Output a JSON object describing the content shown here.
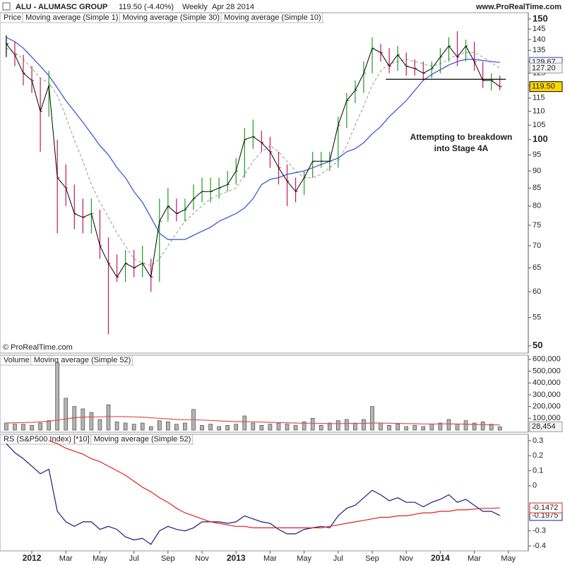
{
  "header": {
    "symbol": "ALU - ALUMASC GROUP",
    "quote": "119.50 (-4.40%)",
    "period": "Weekly",
    "date": "Apr 28 2014",
    "site": "www.ProRealTime.com"
  },
  "chart_data": [
    {
      "type": "ohlc",
      "legend_title": "Price",
      "price_line_name": "Moving average (Simple 1)",
      "log_scale": true,
      "x": [
        -1.5,
        -1,
        -0.5,
        0,
        0.5,
        1,
        1.5,
        2,
        2.5,
        3,
        3.5,
        4,
        4.5,
        5,
        5.5,
        6,
        6.5,
        7,
        7.5,
        8,
        8.5,
        9,
        9.5,
        10,
        10.5,
        11,
        11.5,
        12,
        12.5,
        13,
        13.5,
        14,
        14.5,
        15,
        15.5,
        16,
        16.5,
        17,
        17.5,
        18,
        18.5,
        19,
        19.5,
        20,
        20.5,
        21,
        21.5,
        22,
        22.5,
        23,
        23.5,
        24,
        24.5,
        25,
        25.5,
        26,
        26.5,
        27,
        27.5
      ],
      "high": [
        142,
        139,
        133,
        128,
        123,
        126,
        100,
        92,
        86,
        82,
        82,
        79,
        72,
        68,
        69,
        69,
        70,
        67,
        82,
        85,
        82,
        82,
        86,
        88,
        88,
        88,
        90,
        94,
        104,
        107,
        103,
        101,
        96,
        92,
        88,
        90,
        96,
        96,
        96,
        108,
        117,
        122,
        130,
        141,
        138,
        136,
        137,
        134,
        131,
        130,
        130,
        136,
        141,
        144,
        140,
        139,
        130,
        125,
        124
      ],
      "low": [
        132,
        128,
        120,
        117,
        96,
        108,
        73,
        80,
        74,
        73,
        73,
        67,
        52,
        62,
        62,
        63,
        63,
        60,
        62,
        76,
        76,
        76,
        79,
        81,
        81,
        82,
        84,
        86,
        88,
        97,
        96,
        91,
        86,
        80,
        81,
        83,
        88,
        91,
        90,
        91,
        104,
        113,
        117,
        125,
        130,
        125,
        126,
        124,
        124,
        122,
        123,
        125,
        130,
        128,
        130,
        126,
        119,
        118,
        118
      ],
      "close": [
        138,
        133,
        125,
        122,
        110,
        120,
        88,
        85,
        78,
        77,
        78,
        70,
        66,
        63,
        66,
        65,
        66,
        63,
        76,
        80,
        78,
        79,
        82,
        84,
        84,
        85,
        86,
        90,
        100,
        101,
        99,
        96,
        91,
        87,
        84,
        88,
        93,
        93,
        93,
        105,
        114,
        118,
        125,
        136,
        134,
        128,
        133,
        128,
        127,
        125,
        127,
        132,
        137,
        132,
        137,
        130,
        122,
        122,
        119.5
      ],
      "close_last_label": "119.50",
      "up_color": "#1e9b1e",
      "down_color": "#c2185b",
      "line_color": "#000000",
      "series": [
        {
          "name": "Moving average (Simple 30)",
          "color": "#2f4fd6",
          "values": [
            141,
            139,
            136,
            132,
            128,
            124,
            119,
            114,
            110,
            106,
            102,
            98,
            95,
            91,
            88,
            84,
            81,
            77,
            73,
            71.5,
            71.5,
            71.5,
            72.5,
            73.5,
            74.5,
            76,
            77,
            78,
            79.5,
            82,
            86,
            87.5,
            88,
            89,
            89.5,
            90,
            91,
            92,
            93,
            94,
            96,
            97,
            99,
            102,
            104.5,
            108,
            111,
            114,
            118,
            122,
            124.5,
            126.5,
            128.5,
            130,
            131,
            131,
            130.5,
            130,
            129.67
          ]
        },
        {
          "name": "Moving average (Simple 10)",
          "color": "#a8a8a8",
          "dashed": true,
          "last_label": "127.20",
          "values": [
            136,
            134,
            131,
            127,
            123,
            121,
            116,
            108,
            100,
            93,
            86,
            81,
            77,
            73,
            70,
            67,
            66,
            65.5,
            67,
            70,
            73,
            76,
            78,
            80,
            82,
            83,
            84,
            85,
            89,
            93,
            96,
            98,
            96,
            93,
            90,
            88,
            88,
            89,
            91,
            93,
            98,
            105,
            112,
            120,
            126,
            129,
            130,
            131,
            130,
            129,
            128,
            129,
            131,
            133,
            134,
            134,
            132,
            129.5,
            127.2
          ]
        }
      ],
      "support_line": {
        "value": 122.5,
        "x": [
          20.8,
          27.85
        ]
      },
      "annotation": [
        "Attempting to breakdown",
        "into Stage 4A"
      ],
      "copyright": "© ProRealTime.com",
      "xlim": [
        -1.87,
        29.17
      ],
      "ylim": [
        48.8,
        153.2
      ],
      "yticks": [
        50,
        55,
        60,
        65,
        70,
        75,
        80,
        85,
        90,
        95,
        100,
        105,
        110,
        115,
        120,
        125,
        130,
        135,
        140,
        145,
        150
      ]
    },
    {
      "type": "bar",
      "legend_title": "Volume",
      "color": "#b4b4b4",
      "x": [
        -1.5,
        -1,
        -0.5,
        0,
        0.5,
        1,
        1.5,
        2,
        2.5,
        3,
        3.5,
        4,
        4.5,
        5,
        5.5,
        6,
        6.5,
        7,
        7.5,
        8,
        8.5,
        9,
        9.5,
        10,
        10.5,
        11,
        11.5,
        12,
        12.5,
        13,
        13.5,
        14,
        14.5,
        15,
        15.5,
        16,
        16.5,
        17,
        17.5,
        18,
        18.5,
        19,
        19.5,
        20,
        20.5,
        21,
        21.5,
        22,
        22.5,
        23,
        23.5,
        24,
        24.5,
        25,
        25.5,
        26,
        26.5,
        27,
        27.5
      ],
      "values": [
        60000,
        50000,
        50000,
        40000,
        60000,
        80000,
        570000,
        270000,
        200000,
        180000,
        150000,
        90000,
        215000,
        70000,
        60000,
        50000,
        60000,
        30000,
        80000,
        70000,
        50000,
        60000,
        175000,
        40000,
        50000,
        30000,
        40000,
        50000,
        120000,
        60000,
        40000,
        50000,
        60000,
        50000,
        40000,
        70000,
        100000,
        40000,
        60000,
        80000,
        90000,
        60000,
        90000,
        200000,
        60000,
        40000,
        50000,
        30000,
        40000,
        30000,
        50000,
        60000,
        90000,
        50000,
        80000,
        60000,
        70000,
        50000,
        28454
      ],
      "last_label": "28,454",
      "series": [
        {
          "name": "Moving average (Simple 52)",
          "color": "#e05050",
          "values": [
            60000,
            62000,
            64000,
            66000,
            70000,
            75000,
            85000,
            95000,
            105000,
            110000,
            112000,
            112000,
            115000,
            115000,
            114000,
            112000,
            110000,
            105000,
            100000,
            95000,
            90000,
            88000,
            88000,
            85000,
            82000,
            78000,
            75000,
            72000,
            72000,
            70000,
            68000,
            66000,
            64000,
            62000,
            60000,
            58000,
            58000,
            56000,
            55000,
            55000,
            56000,
            56000,
            57000,
            60000,
            60000,
            58000,
            56000,
            55000,
            54000,
            52000,
            52000,
            52000,
            53000,
            52000,
            50000,
            48000,
            46000,
            45000,
            44000
          ]
        }
      ],
      "xlim": [
        -1.87,
        29.17
      ],
      "ylim": [
        -18000,
        634700
      ],
      "yticks": [
        {
          "value": 100000,
          "label": "100,000"
        },
        {
          "value": 200000,
          "label": "200,000"
        },
        {
          "value": 300000,
          "label": "300,000"
        },
        {
          "value": 400000,
          "label": "400,000"
        },
        {
          "value": 500000,
          "label": "500,000"
        },
        {
          "value": 600000,
          "label": "600,000"
        }
      ]
    },
    {
      "type": "line",
      "x": [
        -1.5,
        -1,
        -0.5,
        0,
        0.5,
        1,
        1.5,
        2,
        2.5,
        3,
        3.5,
        4,
        4.5,
        5,
        5.5,
        6,
        6.5,
        7,
        7.5,
        8,
        8.5,
        9,
        9.5,
        10,
        10.5,
        11,
        11.5,
        12,
        12.5,
        13,
        13.5,
        14,
        14.5,
        15,
        15.5,
        16,
        16.5,
        17,
        17.5,
        18,
        18.5,
        19,
        19.5,
        20,
        20.5,
        21,
        21.5,
        22,
        22.5,
        23,
        23.5,
        24,
        24.5,
        25,
        25.5,
        26,
        26.5,
        27,
        27.5
      ],
      "series": [
        {
          "name": "RS (S&P500 Index) [*10]",
          "color": "#1c1c80",
          "values": [
            0.28,
            0.22,
            0.18,
            0.13,
            0.08,
            0.11,
            -0.17,
            -0.24,
            -0.27,
            -0.24,
            -0.24,
            -0.29,
            -0.27,
            -0.29,
            -0.34,
            -0.36,
            -0.35,
            -0.39,
            -0.3,
            -0.27,
            -0.29,
            -0.3,
            -0.28,
            -0.24,
            -0.24,
            -0.24,
            -0.25,
            -0.24,
            -0.2,
            -0.22,
            -0.24,
            -0.25,
            -0.29,
            -0.32,
            -0.32,
            -0.29,
            -0.28,
            -0.27,
            -0.28,
            -0.2,
            -0.15,
            -0.13,
            -0.08,
            -0.03,
            -0.06,
            -0.1,
            -0.08,
            -0.11,
            -0.11,
            -0.14,
            -0.11,
            -0.09,
            -0.06,
            -0.11,
            -0.09,
            -0.13,
            -0.17,
            -0.17,
            -0.1975
          ]
        },
        {
          "name": "Moving average (Simple 52)",
          "color": "#dd2222",
          "values": [
            null,
            null,
            null,
            null,
            null,
            0.3,
            0.28,
            0.25,
            0.23,
            0.21,
            0.18,
            0.16,
            0.13,
            0.1,
            0.07,
            0.03,
            -0.01,
            -0.04,
            -0.08,
            -0.11,
            -0.15,
            -0.18,
            -0.2,
            -0.22,
            -0.24,
            -0.25,
            -0.26,
            -0.27,
            -0.27,
            -0.28,
            -0.28,
            -0.28,
            -0.28,
            -0.28,
            -0.28,
            -0.28,
            -0.28,
            -0.28,
            -0.27,
            -0.26,
            -0.25,
            -0.24,
            -0.23,
            -0.22,
            -0.21,
            -0.21,
            -0.2,
            -0.2,
            -0.19,
            -0.18,
            -0.18,
            -0.17,
            -0.17,
            -0.16,
            -0.16,
            -0.155,
            -0.15,
            -0.15,
            -0.1472
          ]
        }
      ],
      "xlim": [
        -1.87,
        29.17
      ],
      "ylim": [
        -0.433,
        0.342
      ],
      "yticks": [
        0.3,
        0.2,
        0.1,
        0,
        -0.3,
        -0.4
      ],
      "xticks": [
        {
          "value": 0,
          "label": "2012"
        },
        {
          "value": 2,
          "label": "Mar"
        },
        {
          "value": 4,
          "label": "May"
        },
        {
          "value": 6,
          "label": "Jul"
        },
        {
          "value": 8,
          "label": "Sep"
        },
        {
          "value": 10,
          "label": "Nov"
        },
        {
          "value": 12,
          "label": "2013"
        },
        {
          "value": 14,
          "label": "Mar"
        },
        {
          "value": 16,
          "label": "May"
        },
        {
          "value": 18,
          "label": "Jul"
        },
        {
          "value": 20,
          "label": "Sep"
        },
        {
          "value": 22,
          "label": "Nov"
        },
        {
          "value": 24,
          "label": "2014"
        },
        {
          "value": 26,
          "label": "Mar"
        },
        {
          "value": 28,
          "label": "May"
        }
      ]
    }
  ]
}
